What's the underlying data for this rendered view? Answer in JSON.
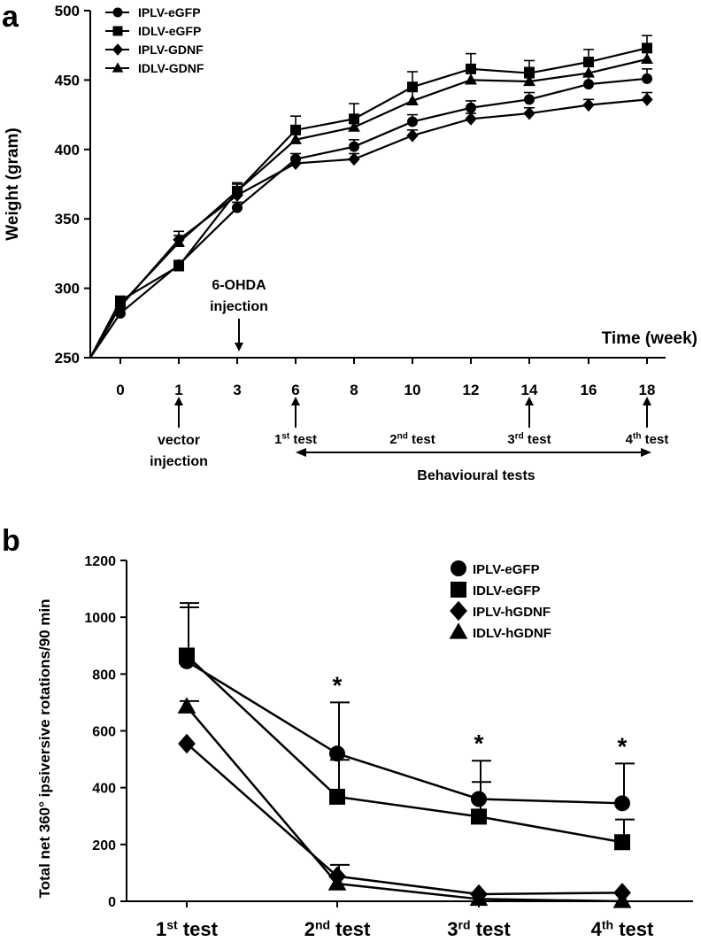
{
  "chart_data": [
    {
      "panel": "a",
      "type": "line",
      "ylabel": "Weight (gram)",
      "xlabel": "Time (week)",
      "categories": [
        "0",
        "1",
        "3",
        "6",
        "8",
        "10",
        "12",
        "14",
        "16",
        "18"
      ],
      "ylim": [
        250,
        500
      ],
      "yticks": [
        250,
        300,
        350,
        400,
        450,
        500
      ],
      "legend_position": "top-left",
      "series": [
        {
          "name": "IPLV-eGFP",
          "marker": "circle",
          "values": [
            282,
            317,
            358,
            393,
            402,
            420,
            430,
            436,
            447,
            451
          ],
          "error": [
            0,
            3,
            4,
            4,
            5,
            5,
            5,
            5,
            6,
            7
          ]
        },
        {
          "name": "IDLV-eGFP",
          "marker": "square",
          "values": [
            291,
            316,
            370,
            414,
            422,
            445,
            458,
            455,
            463,
            473
          ],
          "error": [
            0,
            3,
            6,
            10,
            11,
            11,
            11,
            9,
            9,
            9
          ]
        },
        {
          "name": "IPLV-GDNF",
          "marker": "diamond",
          "values": [
            287,
            335,
            367,
            390,
            393,
            410,
            422,
            426,
            432,
            436
          ],
          "error": [
            0,
            6,
            5,
            4,
            4,
            4,
            4,
            4,
            4,
            5
          ]
        },
        {
          "name": "IDLV-GDNF",
          "marker": "triangle",
          "values": [
            288,
            333,
            370,
            407,
            416,
            435,
            450,
            449,
            455,
            465
          ],
          "error": [
            0,
            5,
            5,
            8,
            9,
            9,
            10,
            10,
            11,
            11
          ]
        }
      ],
      "annotations": {
        "ohda": [
          "6-OHDA",
          "injection"
        ],
        "vector": [
          "vector",
          "injection"
        ],
        "tests": [
          {
            "base": "1",
            "sup": "st",
            "rest": " test"
          },
          {
            "base": "2",
            "sup": "nd",
            "rest": " test"
          },
          {
            "base": "3",
            "sup": "rd",
            "rest": " test"
          },
          {
            "base": "4",
            "sup": "th",
            "rest": " test"
          }
        ],
        "behavioural": "Behavioural tests"
      }
    },
    {
      "panel": "b",
      "type": "line",
      "ylabel": "Total net 360° ipsiversive rotations/90 min",
      "xlabel": "",
      "categories": [
        {
          "base": "1",
          "sup": "st",
          "rest": " test"
        },
        {
          "base": "2",
          "sup": "nd",
          "rest": " test"
        },
        {
          "base": "3",
          "sup": "rd",
          "rest": " test"
        },
        {
          "base": "4",
          "sup": "th",
          "rest": " test"
        }
      ],
      "ylim": [
        0,
        1200
      ],
      "yticks": [
        0,
        200,
        400,
        600,
        800,
        1000,
        1200
      ],
      "legend_position": "top-right",
      "significance": [
        "",
        "*",
        "*",
        "*"
      ],
      "series": [
        {
          "name": "IPLV-eGFP",
          "marker": "circle",
          "values": [
            845,
            520,
            360,
            345
          ],
          "error": [
            190,
            180,
            135,
            140
          ]
        },
        {
          "name": "IDLV-eGFP",
          "marker": "square",
          "values": [
            865,
            368,
            298,
            208
          ],
          "error": [
            185,
            130,
            122,
            80
          ]
        },
        {
          "name": "IPLV-hGDNF",
          "marker": "diamond",
          "values": [
            555,
            88,
            25,
            30
          ],
          "error": [
            0,
            40,
            0,
            0
          ]
        },
        {
          "name": "IDLV-hGDNF",
          "marker": "triangle",
          "values": [
            685,
            62,
            8,
            0
          ],
          "error": [
            20,
            0,
            0,
            0
          ]
        }
      ]
    }
  ]
}
